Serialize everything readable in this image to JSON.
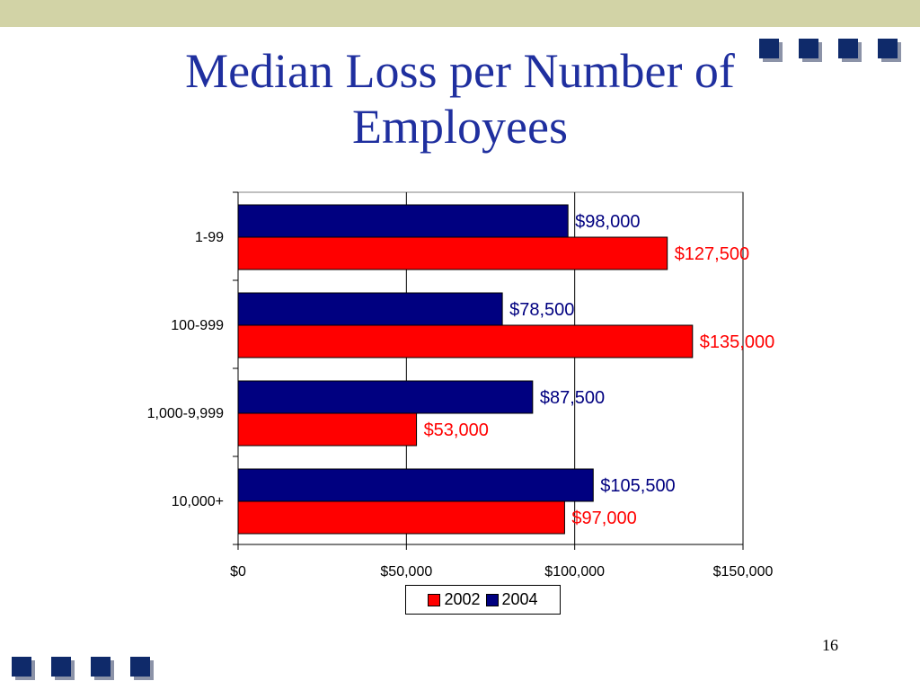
{
  "slide": {
    "title": "Median Loss per Number of Employees",
    "page_number": "16"
  },
  "colors": {
    "band": "#d2d3a6",
    "title": "#1f2f9f",
    "square": "#0f2a6a",
    "series_2002": "#ff0000",
    "series_2004": "#000080"
  },
  "chart_data": {
    "type": "bar",
    "orientation": "horizontal",
    "categories": [
      "1-99",
      "100-999",
      "1,000-9,999",
      "10,000+"
    ],
    "series": [
      {
        "name": "2004",
        "values": [
          98000,
          78500,
          87500,
          105500
        ],
        "labels": [
          "$98,000",
          "$78,500",
          "$87,500",
          "$105,500"
        ],
        "color": "#000080"
      },
      {
        "name": "2002",
        "values": [
          127500,
          135000,
          53000,
          97000
        ],
        "labels": [
          "$127,500",
          "$135,000",
          "$53,000",
          "$97,000"
        ],
        "color": "#ff0000"
      }
    ],
    "xlim": [
      0,
      150000
    ],
    "x_ticks": [
      0,
      50000,
      100000,
      150000
    ],
    "x_tick_labels": [
      "$0",
      "$50,000",
      "$100,000",
      "$150,000"
    ],
    "grid": "vertical",
    "legend": {
      "position": "bottom",
      "entries": [
        "2002",
        "2004"
      ]
    }
  }
}
